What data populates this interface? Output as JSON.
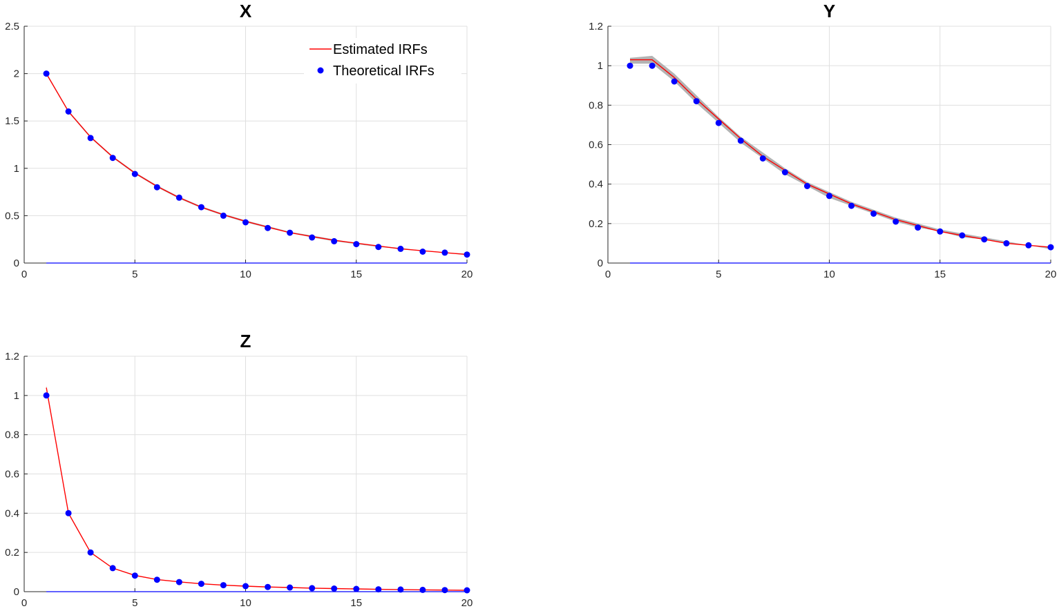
{
  "colors": {
    "estimated": "#ff0000",
    "theoretical": "#0000ff",
    "band": "#a6a6a6",
    "zero_line": "#0000ff",
    "grid": "#dfdfdf",
    "axis": "#262626"
  },
  "legend": {
    "estimated_label": "Estimated IRFs",
    "theoretical_label": "Theoretical IRFs",
    "placement": "top-right of panel X"
  },
  "chart_data": [
    {
      "type": "line",
      "title": "X",
      "xlim": [
        0,
        20
      ],
      "ylim": [
        0,
        2.5
      ],
      "xticks": [
        0,
        5,
        10,
        15,
        20
      ],
      "xtick_labels": [
        "0",
        "5",
        "10",
        "15",
        "20"
      ],
      "yticks": [
        0,
        0.5,
        1,
        1.5,
        2,
        2.5
      ],
      "ytick_labels": [
        "0",
        "0.5",
        "1",
        "1.5",
        "2",
        "2.5"
      ],
      "grid": true,
      "x": [
        1,
        2,
        3,
        4,
        5,
        6,
        7,
        8,
        9,
        10,
        11,
        12,
        13,
        14,
        15,
        16,
        17,
        18,
        19,
        20
      ],
      "series": [
        {
          "name": "Estimated IRFs",
          "kind": "line",
          "values": [
            2.0,
            1.6,
            1.33,
            1.12,
            0.95,
            0.81,
            0.69,
            0.59,
            0.51,
            0.44,
            0.38,
            0.32,
            0.28,
            0.24,
            0.21,
            0.18,
            0.15,
            0.13,
            0.11,
            0.09
          ]
        },
        {
          "name": "Theoretical IRFs",
          "kind": "markers",
          "values": [
            2.0,
            1.6,
            1.32,
            1.11,
            0.94,
            0.8,
            0.69,
            0.59,
            0.5,
            0.43,
            0.37,
            0.32,
            0.27,
            0.23,
            0.2,
            0.17,
            0.15,
            0.12,
            0.11,
            0.09
          ]
        },
        {
          "kind": "band",
          "lower": [
            1.99,
            1.59,
            1.32,
            1.11,
            0.94,
            0.8,
            0.68,
            0.58,
            0.5,
            0.43,
            0.37,
            0.32,
            0.27,
            0.23,
            0.2,
            0.17,
            0.15,
            0.13,
            0.11,
            0.09
          ],
          "upper": [
            2.01,
            1.61,
            1.34,
            1.13,
            0.96,
            0.82,
            0.7,
            0.6,
            0.52,
            0.45,
            0.39,
            0.33,
            0.29,
            0.25,
            0.21,
            0.18,
            0.16,
            0.13,
            0.11,
            0.1
          ]
        },
        {
          "kind": "zero",
          "values": [
            0,
            0,
            0,
            0,
            0,
            0,
            0,
            0,
            0,
            0,
            0,
            0,
            0,
            0,
            0,
            0,
            0,
            0,
            0,
            0
          ]
        }
      ]
    },
    {
      "type": "line",
      "title": "Y",
      "xlim": [
        0,
        20
      ],
      "ylim": [
        0,
        1.2
      ],
      "xticks": [
        0,
        5,
        10,
        15,
        20
      ],
      "xtick_labels": [
        "0",
        "5",
        "10",
        "15",
        "20"
      ],
      "yticks": [
        0,
        0.2,
        0.4,
        0.6,
        0.8,
        1,
        1.2
      ],
      "ytick_labels": [
        "0",
        "0.2",
        "0.4",
        "0.6",
        "0.8",
        "1",
        "1.2"
      ],
      "grid": true,
      "x": [
        1,
        2,
        3,
        4,
        5,
        6,
        7,
        8,
        9,
        10,
        11,
        12,
        13,
        14,
        15,
        16,
        17,
        18,
        19,
        20
      ],
      "series": [
        {
          "name": "Estimated IRFs",
          "kind": "line",
          "values": [
            1.03,
            1.03,
            0.94,
            0.83,
            0.73,
            0.63,
            0.54,
            0.47,
            0.4,
            0.35,
            0.3,
            0.26,
            0.22,
            0.19,
            0.16,
            0.14,
            0.12,
            0.1,
            0.09,
            0.08
          ]
        },
        {
          "name": "Theoretical IRFs",
          "kind": "markers",
          "values": [
            1.0,
            1.0,
            0.92,
            0.82,
            0.71,
            0.62,
            0.53,
            0.46,
            0.39,
            0.34,
            0.29,
            0.25,
            0.21,
            0.18,
            0.16,
            0.14,
            0.12,
            0.1,
            0.09,
            0.08
          ]
        },
        {
          "kind": "band",
          "lower": [
            1.01,
            1.01,
            0.92,
            0.81,
            0.71,
            0.61,
            0.53,
            0.45,
            0.39,
            0.33,
            0.29,
            0.25,
            0.21,
            0.18,
            0.16,
            0.13,
            0.12,
            0.1,
            0.09,
            0.07
          ],
          "upper": [
            1.04,
            1.05,
            0.96,
            0.85,
            0.74,
            0.64,
            0.56,
            0.48,
            0.41,
            0.36,
            0.31,
            0.27,
            0.23,
            0.2,
            0.17,
            0.15,
            0.13,
            0.11,
            0.09,
            0.08
          ]
        },
        {
          "kind": "zero",
          "values": [
            0,
            0,
            0,
            0,
            0,
            0,
            0,
            0,
            0,
            0,
            0,
            0,
            0,
            0,
            0,
            0,
            0,
            0,
            0,
            0
          ]
        }
      ]
    },
    {
      "type": "line",
      "title": "Z",
      "xlim": [
        0,
        20
      ],
      "ylim": [
        0,
        1.2
      ],
      "xticks": [
        0,
        5,
        10,
        15,
        20
      ],
      "xtick_labels": [
        "0",
        "5",
        "10",
        "15",
        "20"
      ],
      "yticks": [
        0,
        0.2,
        0.4,
        0.6,
        0.8,
        1,
        1.2
      ],
      "ytick_labels": [
        "0",
        "0.2",
        "0.4",
        "0.6",
        "0.8",
        "1",
        "1.2"
      ],
      "grid": true,
      "x": [
        1,
        2,
        3,
        4,
        5,
        6,
        7,
        8,
        9,
        10,
        11,
        12,
        13,
        14,
        15,
        16,
        17,
        18,
        19,
        20
      ],
      "series": [
        {
          "name": "Estimated IRFs",
          "kind": "line",
          "values": [
            1.04,
            0.4,
            0.2,
            0.12,
            0.083,
            0.062,
            0.05,
            0.04,
            0.033,
            0.028,
            0.024,
            0.021,
            0.018,
            0.016,
            0.014,
            0.012,
            0.011,
            0.009,
            0.008,
            0.007
          ]
        },
        {
          "name": "Theoretical IRFs",
          "kind": "markers",
          "values": [
            1.0,
            0.4,
            0.2,
            0.12,
            0.082,
            0.061,
            0.049,
            0.04,
            0.033,
            0.028,
            0.024,
            0.021,
            0.018,
            0.016,
            0.014,
            0.012,
            0.011,
            0.009,
            0.008,
            0.007
          ]
        },
        {
          "kind": "band",
          "lower": [
            1.03,
            0.395,
            0.197,
            0.118,
            0.081,
            0.061,
            0.049,
            0.04,
            0.033,
            0.028,
            0.024,
            0.021,
            0.018,
            0.016,
            0.014,
            0.012,
            0.011,
            0.009,
            0.008,
            0.007
          ],
          "upper": [
            1.05,
            0.405,
            0.203,
            0.122,
            0.085,
            0.063,
            0.051,
            0.041,
            0.034,
            0.029,
            0.025,
            0.022,
            0.019,
            0.017,
            0.015,
            0.013,
            0.011,
            0.01,
            0.009,
            0.008
          ]
        },
        {
          "kind": "zero",
          "values": [
            0,
            0,
            0,
            0,
            0,
            0,
            0,
            0,
            0,
            0,
            0,
            0,
            0,
            0,
            0,
            0,
            0,
            0,
            0,
            0
          ]
        }
      ]
    }
  ]
}
